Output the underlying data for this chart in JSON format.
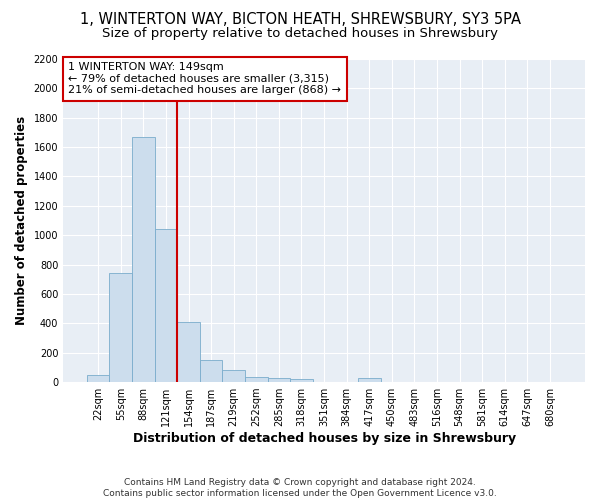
{
  "title_line1": "1, WINTERTON WAY, BICTON HEATH, SHREWSBURY, SY3 5PA",
  "title_line2": "Size of property relative to detached houses in Shrewsbury",
  "xlabel": "Distribution of detached houses by size in Shrewsbury",
  "ylabel": "Number of detached properties",
  "footnote": "Contains HM Land Registry data © Crown copyright and database right 2024.\nContains public sector information licensed under the Open Government Licence v3.0.",
  "categories": [
    "22sqm",
    "55sqm",
    "88sqm",
    "121sqm",
    "154sqm",
    "187sqm",
    "219sqm",
    "252sqm",
    "285sqm",
    "318sqm",
    "351sqm",
    "384sqm",
    "417sqm",
    "450sqm",
    "483sqm",
    "516sqm",
    "548sqm",
    "581sqm",
    "614sqm",
    "647sqm",
    "680sqm"
  ],
  "values": [
    50,
    745,
    1670,
    1040,
    410,
    148,
    80,
    38,
    30,
    22,
    0,
    0,
    25,
    0,
    0,
    0,
    0,
    0,
    0,
    0,
    0
  ],
  "bar_color": "#ccdded",
  "bar_edge_color": "#7aaccc",
  "vline_color": "#cc0000",
  "vline_x_index": 4,
  "annotation_text": "1 WINTERTON WAY: 149sqm\n← 79% of detached houses are smaller (3,315)\n21% of semi-detached houses are larger (868) →",
  "annotation_box_color": "#ffffff",
  "annotation_box_edge": "#cc0000",
  "ylim": [
    0,
    2200
  ],
  "yticks": [
    0,
    200,
    400,
    600,
    800,
    1000,
    1200,
    1400,
    1600,
    1800,
    2000,
    2200
  ],
  "bg_color": "#e8eef5",
  "grid_color": "#ffffff",
  "title_fontsize": 10.5,
  "subtitle_fontsize": 9.5,
  "xlabel_fontsize": 9,
  "ylabel_fontsize": 8.5,
  "tick_fontsize": 7,
  "annotation_fontsize": 8,
  "footnote_fontsize": 6.5
}
